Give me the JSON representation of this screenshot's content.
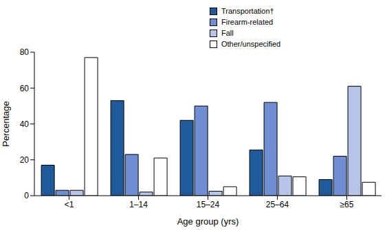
{
  "chart_data": {
    "type": "bar",
    "x_label": "Age group (yrs)",
    "y_label": "Percentage",
    "categories": [
      "<1",
      "1–14",
      "15–24",
      "25–64",
      "≥65"
    ],
    "series": [
      {
        "name": "Transportation†",
        "color": "#1f5b9a",
        "values": [
          17,
          53,
          42,
          25.5,
          9
        ]
      },
      {
        "name": "Firearm-related",
        "color": "#6f8fd2",
        "values": [
          3,
          23,
          50,
          52,
          22
        ]
      },
      {
        "name": "Fall",
        "color": "#b5c4e8",
        "values": [
          3,
          2,
          2.5,
          11,
          61
        ]
      },
      {
        "name": "Other/unspecified",
        "color": "#ffffff",
        "values": [
          77,
          21,
          5,
          10.5,
          7.5
        ]
      }
    ],
    "ylim": [
      0,
      80
    ],
    "yticks": [
      0,
      20,
      40,
      60,
      80
    ],
    "grid": false,
    "legend": "upper right"
  }
}
